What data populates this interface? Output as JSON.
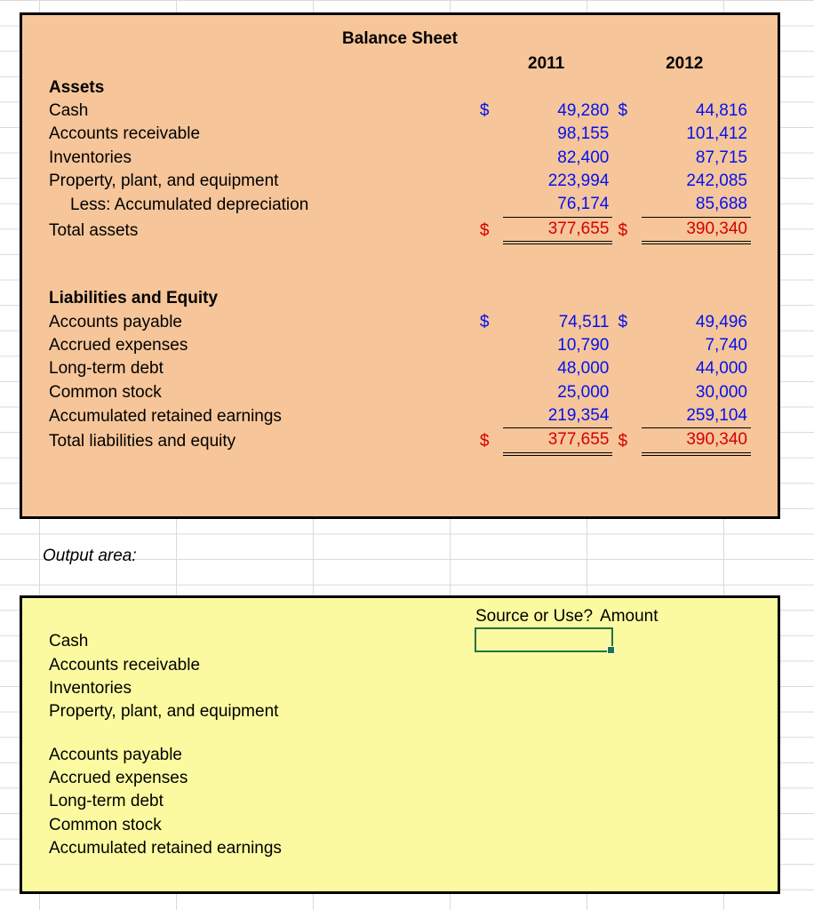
{
  "colors": {
    "panel_top_bg": "#f6c599",
    "panel_bottom_bg": "#fcfaa0",
    "border": "#000000",
    "grid": "#d9d9d9",
    "value_blue": "#0012ef",
    "value_red": "#d40000",
    "cell_select": "#1f7346"
  },
  "balance_sheet": {
    "title": "Balance Sheet",
    "year_cols": [
      "2011",
      "2012"
    ],
    "currency_symbol": "$",
    "sections": {
      "assets": {
        "heading": "Assets",
        "rows": [
          {
            "label": "Cash",
            "v2011": "49,280",
            "v2012": "44,816",
            "has_symbol": true
          },
          {
            "label": "Accounts receivable",
            "v2011": "98,155",
            "v2012": "101,412"
          },
          {
            "label": "Inventories",
            "v2011": "82,400",
            "v2012": "87,715"
          },
          {
            "label": "Property, plant, and equipment",
            "v2011": "223,994",
            "v2012": "242,085"
          },
          {
            "label": "Less: Accumulated depreciation",
            "v2011": "76,174",
            "v2012": "85,688",
            "indent": true
          }
        ],
        "total": {
          "label": "Total assets",
          "v2011": "377,655",
          "v2012": "390,340"
        }
      },
      "liab_equity": {
        "heading": "Liabilities and Equity",
        "rows": [
          {
            "label": "Accounts payable",
            "v2011": "74,511",
            "v2012": "49,496",
            "has_symbol": true
          },
          {
            "label": "Accrued expenses",
            "v2011": "10,790",
            "v2012": "7,740"
          },
          {
            "label": "Long-term debt",
            "v2011": "48,000",
            "v2012": "44,000"
          },
          {
            "label": "Common stock",
            "v2011": "25,000",
            "v2012": "30,000"
          },
          {
            "label": "Accumulated retained earnings",
            "v2011": "219,354",
            "v2012": "259,104"
          }
        ],
        "total": {
          "label": "Total liabilities and equity",
          "v2011": "377,655",
          "v2012": "390,340"
        }
      }
    }
  },
  "output": {
    "label": "Output area:",
    "header1": "Source or Use?",
    "header2": "Amount",
    "group1": [
      "Cash",
      "Accounts receivable",
      "Inventories",
      "Property, plant, and equipment"
    ],
    "group2": [
      "Accounts payable",
      "Accrued expenses",
      "Long-term debt",
      "Common stock",
      "Accumulated retained earnings"
    ]
  }
}
